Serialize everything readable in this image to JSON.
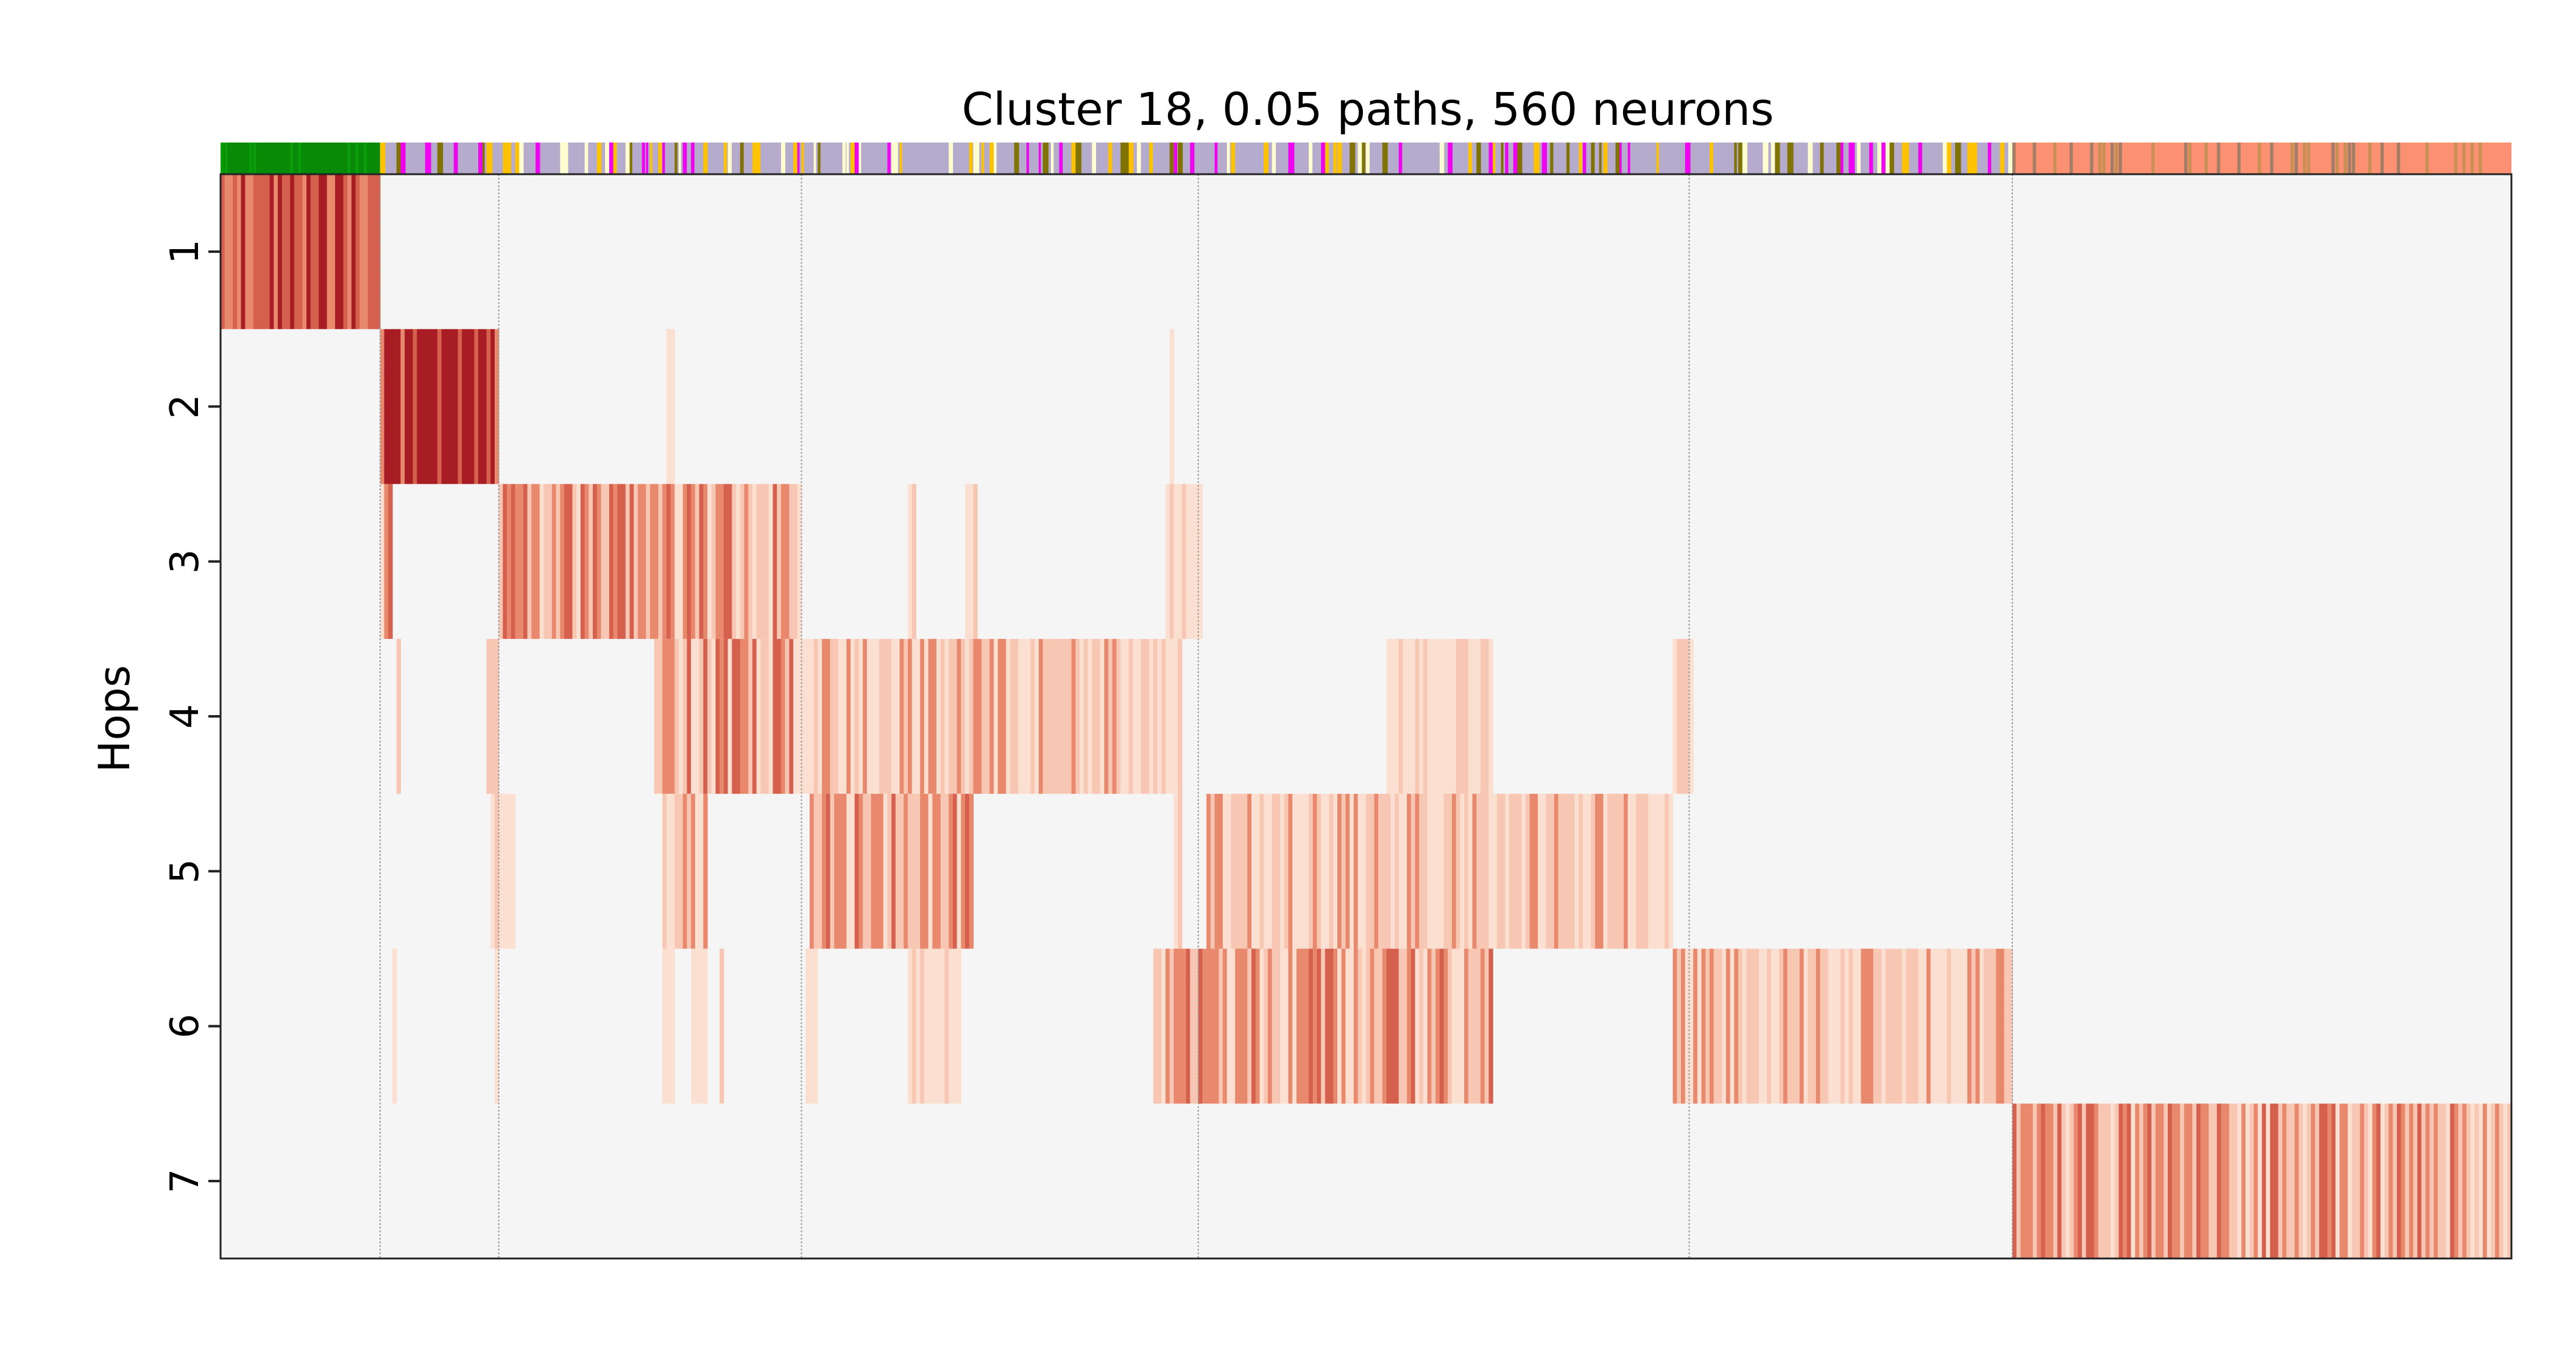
{
  "chart_data": {
    "type": "heatmap",
    "title": "Cluster 18, 0.05 paths, 560 neurons",
    "xlabel": "",
    "ylabel": "Hops",
    "y_tick_labels": [
      "1",
      "2",
      "3",
      "4",
      "5",
      "6",
      "7"
    ],
    "x_tick_labels": [],
    "n_neurons": 560,
    "hop_column_ranges": [
      {
        "hop": 1,
        "start": 0,
        "end": 39
      },
      {
        "hop": 2,
        "start": 39,
        "end": 68
      },
      {
        "hop": 3,
        "start": 68,
        "end": 142
      },
      {
        "hop": 4,
        "start": 142,
        "end": 239
      },
      {
        "hop": 5,
        "start": 239,
        "end": 359
      },
      {
        "hop": 6,
        "start": 359,
        "end": 438
      },
      {
        "hop": 7,
        "start": 438,
        "end": 560
      }
    ],
    "group_divider_columns": [
      39,
      68,
      142,
      239,
      359,
      438
    ],
    "rows": [
      {
        "hop": 1,
        "segments": [
          {
            "start": 0,
            "end": 39,
            "level": "medium-dark"
          }
        ]
      },
      {
        "hop": 2,
        "segments": [
          {
            "start": 39,
            "end": 68,
            "level": "dark"
          },
          {
            "start": 109,
            "end": 111,
            "level": "light"
          },
          {
            "start": 232,
            "end": 233,
            "level": "light"
          }
        ]
      },
      {
        "hop": 3,
        "segments": [
          {
            "start": 39,
            "end": 42,
            "level": "medium"
          },
          {
            "start": 68,
            "end": 142,
            "level": "medium"
          },
          {
            "start": 168,
            "end": 170,
            "level": "light"
          },
          {
            "start": 182,
            "end": 185,
            "level": "light"
          },
          {
            "start": 231,
            "end": 240,
            "level": "light"
          }
        ]
      },
      {
        "hop": 4,
        "segments": [
          {
            "start": 43,
            "end": 44,
            "level": "light"
          },
          {
            "start": 65,
            "end": 68,
            "level": "light"
          },
          {
            "start": 106,
            "end": 142,
            "level": "medium"
          },
          {
            "start": 142,
            "end": 235,
            "level": "medium-light"
          },
          {
            "start": 285,
            "end": 311,
            "level": "light"
          },
          {
            "start": 355,
            "end": 360,
            "level": "light"
          }
        ]
      },
      {
        "hop": 5,
        "segments": [
          {
            "start": 66,
            "end": 72,
            "level": "light"
          },
          {
            "start": 108,
            "end": 119,
            "level": "medium-light"
          },
          {
            "start": 144,
            "end": 184,
            "level": "medium"
          },
          {
            "start": 233,
            "end": 235,
            "level": "light"
          },
          {
            "start": 241,
            "end": 355,
            "level": "medium-light"
          }
        ]
      },
      {
        "hop": 6,
        "segments": [
          {
            "start": 42,
            "end": 43,
            "level": "light"
          },
          {
            "start": 67,
            "end": 68,
            "level": "light"
          },
          {
            "start": 108,
            "end": 111,
            "level": "light"
          },
          {
            "start": 115,
            "end": 119,
            "level": "light"
          },
          {
            "start": 122,
            "end": 123,
            "level": "light"
          },
          {
            "start": 143,
            "end": 146,
            "level": "light"
          },
          {
            "start": 168,
            "end": 181,
            "level": "light"
          },
          {
            "start": 228,
            "end": 311,
            "level": "medium"
          },
          {
            "start": 355,
            "end": 438,
            "level": "medium-light"
          }
        ]
      },
      {
        "hop": 7,
        "segments": [
          {
            "start": 438,
            "end": 560,
            "level": "medium"
          }
        ]
      }
    ],
    "level_colors": {
      "background": "#f5f5f5",
      "light": "#fbdfd1",
      "medium-light": "#f8c7b3",
      "medium": "#e8896e",
      "medium-dark": "#d4604d",
      "dark": "#a81d24"
    },
    "top_color_bar": [
      {
        "start": 0,
        "end": 39,
        "color": "#098a07"
      },
      {
        "start": 39,
        "end": 438,
        "color": "#b5abcd"
      },
      {
        "start": 438,
        "end": 560,
        "color": "#fc9072"
      }
    ],
    "top_bar_accent_colors": [
      "#ee04ee",
      "#fdc200",
      "#807303",
      "#fdfdd0",
      "#c99054",
      "#a37e66"
    ],
    "grid": false
  }
}
